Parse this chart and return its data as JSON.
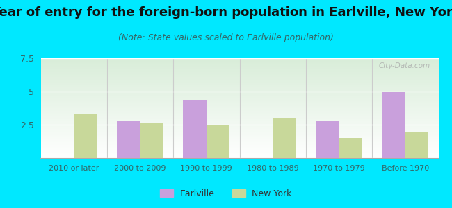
{
  "title": "Year of entry for the foreign-born population in Earlville, New York",
  "subtitle": "(Note: State values scaled to Earlville population)",
  "categories": [
    "2010 or later",
    "2000 to 2009",
    "1990 to 1999",
    "1980 to 1989",
    "1970 to 1979",
    "Before 1970"
  ],
  "earlville": [
    0,
    2.8,
    4.4,
    0,
    2.8,
    5.0
  ],
  "new_york": [
    3.3,
    2.6,
    2.5,
    3.0,
    1.5,
    2.0
  ],
  "earlville_color": "#c9a0dc",
  "new_york_color": "#c8d89a",
  "ylim": [
    0,
    7.5
  ],
  "yticks": [
    0,
    2.5,
    5,
    7.5
  ],
  "background_outer": "#00e8ff",
  "background_plot_tl": "#d8edd8",
  "background_plot_br": "#f8fff8",
  "title_fontsize": 13,
  "subtitle_fontsize": 9,
  "legend_earlville": "Earlville",
  "legend_new_york": "New York",
  "bar_width": 0.35,
  "tick_label_color": "#336666",
  "title_color": "#111111",
  "subtitle_color": "#336666"
}
